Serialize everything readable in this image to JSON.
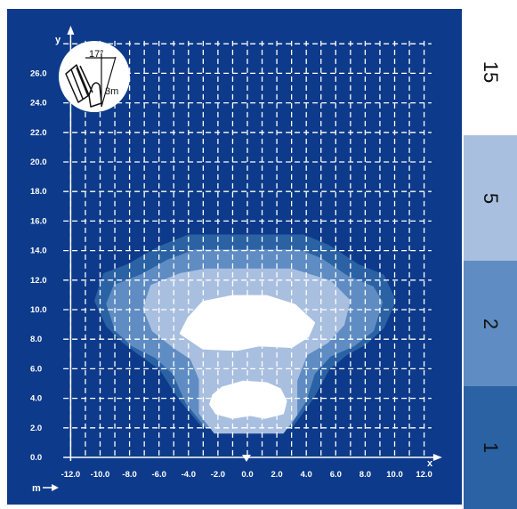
{
  "chart_data": {
    "type": "heatmap",
    "title": "",
    "xlabel": "x",
    "ylabel": "y",
    "unit_label": "m",
    "xlim": [
      -13.0,
      12.5
    ],
    "ylim": [
      -0.8,
      28.5
    ],
    "x_ticks": [
      "-12.0",
      "-10.0",
      "-8.0",
      "-6.0",
      "-4.0",
      "-2.0",
      "0.0",
      "2.0",
      "4.0",
      "6.0",
      "8.0",
      "10.0",
      "12.0"
    ],
    "x_tick_values": [
      -12,
      -10,
      -8,
      -6,
      -4,
      -2,
      0,
      2,
      4,
      6,
      8,
      10,
      12
    ],
    "y_ticks": [
      "0.0",
      "2.0",
      "4.0",
      "6.0",
      "8.0",
      "10.0",
      "12.0",
      "14.0",
      "16.0",
      "18.0",
      "20.0",
      "22.0",
      "24.0",
      "26.0"
    ],
    "y_tick_values": [
      0,
      2,
      4,
      6,
      8,
      10,
      12,
      14,
      16,
      18,
      20,
      22,
      24,
      26
    ],
    "grid": true,
    "inset": {
      "angle_label": "17°",
      "height_label": "3m"
    },
    "colors": {
      "background": "#0d3a8a",
      "grid": "#ffffff",
      "zone_1": "#2a62a4",
      "zone_2": "#5f8cc2",
      "zone_5": "#a9bfe0",
      "zone_15": "#ffffff"
    },
    "legend": [
      {
        "label": "15",
        "color": "#ffffff"
      },
      {
        "label": "5",
        "color": "#a9bfe0"
      },
      {
        "label": "2",
        "color": "#5f8cc2"
      },
      {
        "label": "1",
        "color": "#2a62a4"
      }
    ],
    "zones": [
      {
        "level": "1",
        "color": "#2a62a4",
        "outline": [
          [
            -4.0,
            15.0
          ],
          [
            3.8,
            15.0
          ],
          [
            5.5,
            14.3
          ],
          [
            7.5,
            13.0
          ],
          [
            9.2,
            12.3
          ],
          [
            10.0,
            10.6
          ],
          [
            9.2,
            8.8
          ],
          [
            8.0,
            7.7
          ],
          [
            6.7,
            7.0
          ],
          [
            5.5,
            6.0
          ],
          [
            4.4,
            4.0
          ],
          [
            3.0,
            2.1
          ],
          [
            0,
            1.7
          ],
          [
            -3.0,
            2.1
          ],
          [
            -4.6,
            4.0
          ],
          [
            -5.9,
            6.0
          ],
          [
            -7.3,
            7.0
          ],
          [
            -8.5,
            7.9
          ],
          [
            -9.5,
            8.9
          ],
          [
            -10.3,
            10.6
          ],
          [
            -9.7,
            12.4
          ],
          [
            -8.1,
            13.0
          ],
          [
            -6.0,
            14.2
          ]
        ]
      },
      {
        "level": "2",
        "color": "#5f8cc2",
        "outline": [
          [
            -3.5,
            14.0
          ],
          [
            3.5,
            14.0
          ],
          [
            5.0,
            13.4
          ],
          [
            6.8,
            12.2
          ],
          [
            8.5,
            11.5
          ],
          [
            9.1,
            10.5
          ],
          [
            8.5,
            8.6
          ],
          [
            7.2,
            7.6
          ],
          [
            5.6,
            6.9
          ],
          [
            4.5,
            5.7
          ],
          [
            3.9,
            3.8
          ],
          [
            2.8,
            2.1
          ],
          [
            0,
            1.7
          ],
          [
            -2.8,
            2.1
          ],
          [
            -4.1,
            3.7
          ],
          [
            -5.0,
            5.7
          ],
          [
            -6.2,
            6.8
          ],
          [
            -7.8,
            7.6
          ],
          [
            -8.9,
            8.6
          ],
          [
            -9.5,
            10.4
          ],
          [
            -9.0,
            11.6
          ],
          [
            -7.2,
            12.3
          ],
          [
            -5.4,
            13.3
          ]
        ]
      },
      {
        "level": "5",
        "color": "#a9bfe0",
        "outline": [
          [
            -2.8,
            12.7
          ],
          [
            3.0,
            12.7
          ],
          [
            5.6,
            11.9
          ],
          [
            6.9,
            10.6
          ],
          [
            6.5,
            9.0
          ],
          [
            5.4,
            7.8
          ],
          [
            4.0,
            7.0
          ],
          [
            3.3,
            5.2
          ],
          [
            3.3,
            2.9
          ],
          [
            2.4,
            1.7
          ],
          [
            -2.2,
            1.7
          ],
          [
            -3.2,
            3.0
          ],
          [
            -3.2,
            5.3
          ],
          [
            -3.8,
            6.7
          ],
          [
            -5.0,
            7.5
          ],
          [
            -6.4,
            8.6
          ],
          [
            -7.0,
            10.1
          ],
          [
            -6.5,
            11.6
          ],
          [
            -4.5,
            12.4
          ]
        ]
      },
      {
        "level": "15",
        "color": "#ffffff",
        "outline": [
          [
            -3.0,
            10.5
          ],
          [
            -1.0,
            10.9
          ],
          [
            1.3,
            10.9
          ],
          [
            3.2,
            10.3
          ],
          [
            4.5,
            9.1
          ],
          [
            4.1,
            8.2
          ],
          [
            3.0,
            7.5
          ],
          [
            0.8,
            7.6
          ],
          [
            -0.7,
            7.3
          ],
          [
            -3.0,
            7.4
          ],
          [
            -4.5,
            8.4
          ],
          [
            -4.0,
            9.4
          ]
        ]
      },
      {
        "level": "15",
        "color": "#ffffff",
        "outline": [
          [
            -1.7,
            4.7
          ],
          [
            -0.3,
            5.1
          ],
          [
            1.3,
            5.0
          ],
          [
            2.2,
            4.6
          ],
          [
            2.6,
            3.8
          ],
          [
            2.4,
            3.0
          ],
          [
            1.2,
            2.7
          ],
          [
            0.2,
            2.9
          ],
          [
            -1.0,
            2.7
          ],
          [
            -2.1,
            3.0
          ],
          [
            -2.5,
            3.6
          ],
          [
            -2.3,
            4.2
          ]
        ]
      }
    ]
  }
}
